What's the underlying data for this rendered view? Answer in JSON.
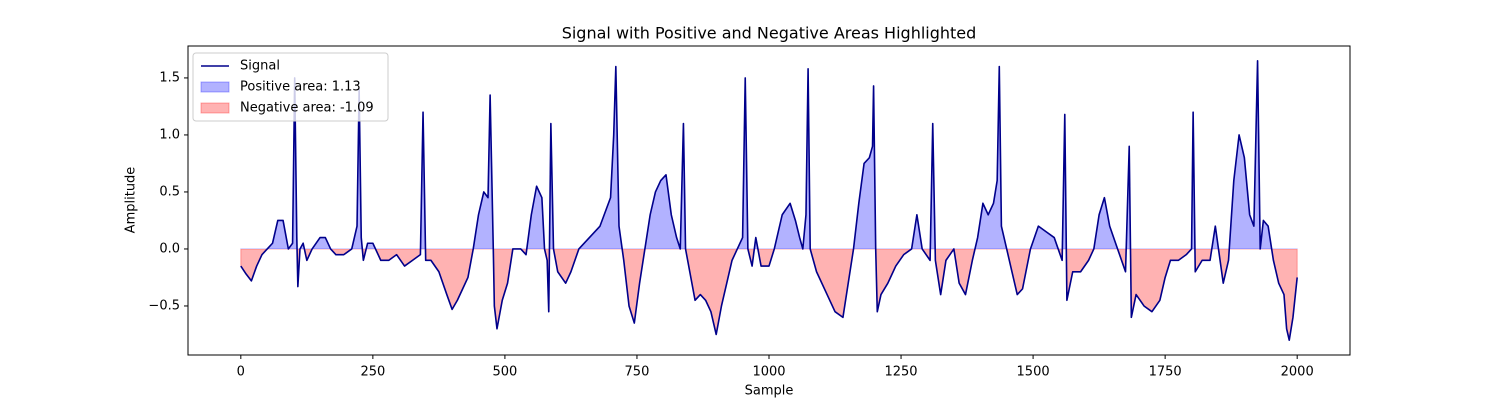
{
  "chart_data": {
    "type": "line",
    "title": "Signal with Positive and Negative Areas Highlighted",
    "x_label": "Sample",
    "y_label": "Amplitude",
    "x": [
      0,
      10,
      20,
      30,
      40,
      50,
      60,
      70,
      80,
      90,
      98,
      102,
      106,
      108,
      112,
      118,
      125,
      135,
      150,
      160,
      170,
      180,
      195,
      210,
      220,
      224,
      228,
      232,
      240,
      250,
      265,
      280,
      295,
      310,
      325,
      340,
      345,
      350,
      360,
      375,
      390,
      400,
      410,
      420,
      430,
      440,
      450,
      460,
      468,
      472,
      478,
      480,
      485,
      495,
      505,
      515,
      530,
      540,
      550,
      560,
      570,
      575,
      580,
      583,
      587,
      592,
      600,
      615,
      625,
      640,
      660,
      680,
      700,
      706,
      710,
      716,
      725,
      735,
      745,
      755,
      765,
      775,
      785,
      795,
      805,
      815,
      825,
      832,
      838,
      842,
      850,
      860,
      870,
      880,
      890,
      900,
      910,
      920,
      930,
      940,
      950,
      955,
      960,
      968,
      975,
      985,
      1000,
      1010,
      1025,
      1040,
      1050,
      1058,
      1064,
      1070,
      1074,
      1078,
      1090,
      1110,
      1125,
      1140,
      1150,
      1160,
      1170,
      1180,
      1190,
      1196,
      1198,
      1202,
      1205,
      1212,
      1225,
      1240,
      1255,
      1270,
      1280,
      1290,
      1305,
      1310,
      1315,
      1325,
      1335,
      1350,
      1360,
      1372,
      1385,
      1395,
      1405,
      1415,
      1425,
      1432,
      1436,
      1440,
      1450,
      1460,
      1470,
      1480,
      1495,
      1510,
      1525,
      1540,
      1555,
      1560,
      1564,
      1575,
      1590,
      1605,
      1615,
      1625,
      1635,
      1645,
      1660,
      1675,
      1682,
      1686,
      1695,
      1710,
      1725,
      1740,
      1750,
      1760,
      1775,
      1790,
      1800,
      1803,
      1807,
      1820,
      1835,
      1845,
      1860,
      1870,
      1880,
      1890,
      1900,
      1910,
      1918,
      1925,
      1930,
      1936,
      1945,
      1955,
      1965,
      1975,
      1980,
      1985,
      1992,
      2000
    ],
    "series": [
      {
        "name": "Signal",
        "color": "#00008b",
        "values": [
          -0.15,
          -0.22,
          -0.28,
          -0.15,
          -0.05,
          0.0,
          0.05,
          0.25,
          0.25,
          0.0,
          0.05,
          1.5,
          0.1,
          -0.33,
          0.0,
          0.05,
          -0.1,
          0.0,
          0.1,
          0.1,
          0.0,
          -0.05,
          -0.05,
          0.0,
          0.2,
          1.4,
          0.1,
          -0.1,
          0.05,
          0.05,
          -0.1,
          -0.1,
          -0.05,
          -0.15,
          -0.1,
          -0.05,
          1.2,
          -0.1,
          -0.1,
          -0.2,
          -0.4,
          -0.53,
          -0.45,
          -0.35,
          -0.25,
          0.0,
          0.3,
          0.5,
          0.45,
          1.35,
          0.0,
          -0.5,
          -0.7,
          -0.45,
          -0.3,
          0.0,
          0.0,
          -0.05,
          0.3,
          0.55,
          0.45,
          0.0,
          -0.1,
          -0.55,
          1.1,
          0.0,
          -0.2,
          -0.3,
          -0.2,
          0.0,
          0.1,
          0.2,
          0.45,
          1.0,
          1.6,
          0.2,
          -0.1,
          -0.5,
          -0.65,
          -0.3,
          0.0,
          0.3,
          0.5,
          0.6,
          0.65,
          0.3,
          0.1,
          0.0,
          1.1,
          0.0,
          -0.2,
          -0.45,
          -0.4,
          -0.45,
          -0.55,
          -0.75,
          -0.5,
          -0.3,
          -0.1,
          0.0,
          0.1,
          1.5,
          0.0,
          -0.15,
          0.1,
          -0.15,
          -0.15,
          0.0,
          0.3,
          0.4,
          0.25,
          0.1,
          0.0,
          0.3,
          1.58,
          0.0,
          -0.2,
          -0.4,
          -0.55,
          -0.6,
          -0.3,
          0.0,
          0.4,
          0.75,
          0.8,
          0.9,
          1.43,
          0.0,
          -0.55,
          -0.4,
          -0.3,
          -0.15,
          -0.05,
          0.0,
          0.3,
          0.0,
          -0.1,
          1.1,
          -0.1,
          -0.4,
          -0.1,
          0.0,
          -0.3,
          -0.4,
          -0.1,
          0.1,
          0.4,
          0.3,
          0.4,
          0.6,
          1.6,
          0.2,
          0.0,
          -0.2,
          -0.4,
          -0.35,
          0.0,
          0.2,
          0.15,
          0.1,
          -0.1,
          1.18,
          -0.45,
          -0.2,
          -0.2,
          -0.1,
          0.0,
          0.3,
          0.45,
          0.2,
          0.0,
          -0.2,
          0.9,
          -0.6,
          -0.4,
          -0.5,
          -0.55,
          -0.45,
          -0.25,
          -0.1,
          -0.1,
          -0.05,
          0.0,
          1.2,
          -0.2,
          -0.1,
          -0.1,
          0.2,
          -0.3,
          -0.1,
          0.6,
          1.0,
          0.8,
          0.3,
          0.2,
          1.65,
          0.0,
          0.25,
          0.2,
          -0.1,
          -0.3,
          -0.4,
          -0.7,
          -0.8,
          -0.6,
          -0.25
        ]
      }
    ],
    "fills": [
      {
        "name": "Positive area: 1.13",
        "color": "#0000ff",
        "side": "positive"
      },
      {
        "name": "Negative area: -1.09",
        "color": "#ff0000",
        "side": "negative"
      }
    ],
    "xlim": [
      -100,
      2100
    ],
    "ylim": [
      -0.93,
      1.78
    ],
    "xticks": [
      0,
      250,
      500,
      750,
      1000,
      1250,
      1500,
      1750,
      2000
    ],
    "yticks": [
      {
        "value": -0.5,
        "label": "−0.5"
      },
      {
        "value": 0,
        "label": "0.0"
      },
      {
        "value": 0.5,
        "label": "0.5"
      },
      {
        "value": 1,
        "label": "1.0"
      },
      {
        "value": 1.5,
        "label": "1.5"
      }
    ],
    "legend": "upper left"
  }
}
